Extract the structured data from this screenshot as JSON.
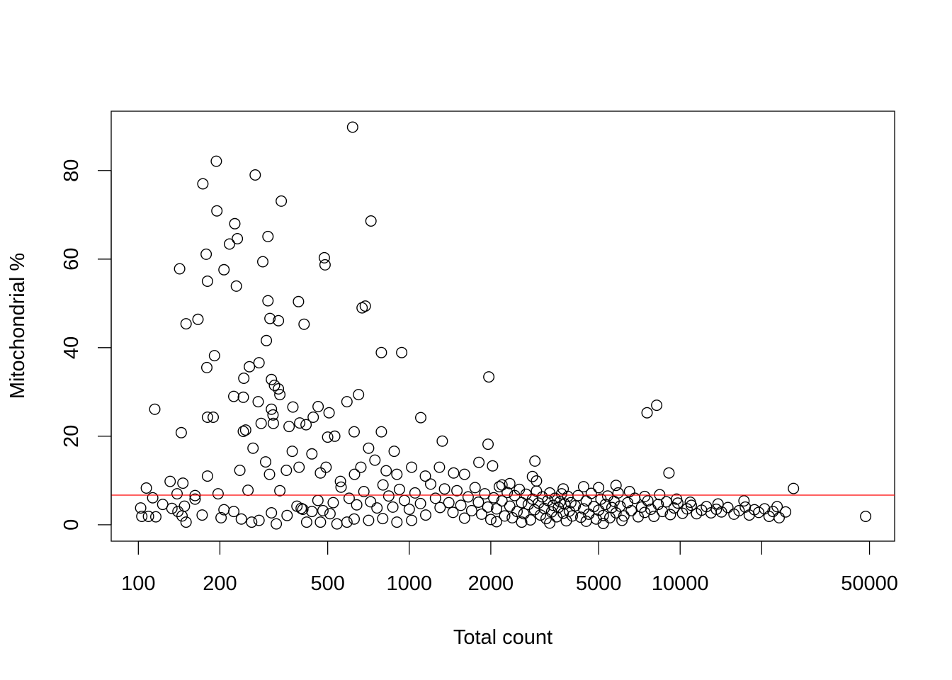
{
  "chart_data": {
    "type": "scatter",
    "title": "",
    "xlabel": "Total count",
    "ylabel": "Mitochondrial %",
    "xscale": "log",
    "xlim": [
      79.4,
      61900
    ],
    "ylim": [
      -3.7,
      93.4
    ],
    "grid": false,
    "legend": "none",
    "x_ticks": [
      {
        "value": 100,
        "label": "100"
      },
      {
        "value": 200,
        "label": "200"
      },
      {
        "value": 500,
        "label": "500"
      },
      {
        "value": 1000,
        "label": "1000"
      },
      {
        "value": 2000,
        "label": "2000"
      },
      {
        "value": 5000,
        "label": "5000"
      },
      {
        "value": 10000,
        "label": "10000"
      },
      {
        "value": 20000,
        "label": ""
      },
      {
        "value": 50000,
        "label": "50000"
      }
    ],
    "y_ticks": [
      {
        "value": 0,
        "label": "0"
      },
      {
        "value": 20,
        "label": "20"
      },
      {
        "value": 40,
        "label": "40"
      },
      {
        "value": 60,
        "label": "60"
      },
      {
        "value": 80,
        "label": "80"
      }
    ],
    "hline": {
      "value": 6.7,
      "color": "#ff0000"
    },
    "point_color": "#000000",
    "points": [
      [
        618,
        89.8
      ],
      [
        194,
        82.1
      ],
      [
        270,
        79.0
      ],
      [
        173,
        77.0
      ],
      [
        337,
        73.1
      ],
      [
        195,
        70.9
      ],
      [
        722,
        68.6
      ],
      [
        227,
        68.0
      ],
      [
        232,
        64.6
      ],
      [
        301,
        65.1
      ],
      [
        217,
        63.4
      ],
      [
        486,
        60.3
      ],
      [
        489,
        58.7
      ],
      [
        178,
        61.1
      ],
      [
        288,
        59.4
      ],
      [
        142,
        57.8
      ],
      [
        207,
        57.6
      ],
      [
        180,
        55.0
      ],
      [
        230,
        53.9
      ],
      [
        301,
        50.6
      ],
      [
        390,
        50.4
      ],
      [
        688,
        49.4
      ],
      [
        670,
        49.0
      ],
      [
        306,
        46.6
      ],
      [
        166,
        46.4
      ],
      [
        329,
        46.1
      ],
      [
        150,
        45.4
      ],
      [
        409,
        45.3
      ],
      [
        297,
        41.6
      ],
      [
        789,
        38.9
      ],
      [
        938,
        38.9
      ],
      [
        191,
        38.2
      ],
      [
        279,
        36.6
      ],
      [
        257,
        35.7
      ],
      [
        179,
        35.5
      ],
      [
        1967,
        33.4
      ],
      [
        245,
        33.1
      ],
      [
        310,
        32.8
      ],
      [
        318,
        31.5
      ],
      [
        329,
        30.7
      ],
      [
        333,
        29.4
      ],
      [
        650,
        29.4
      ],
      [
        225,
        29.0
      ],
      [
        244,
        28.8
      ],
      [
        277,
        27.8
      ],
      [
        589,
        27.8
      ],
      [
        372,
        26.6
      ],
      [
        461,
        26.7
      ],
      [
        8190,
        27.0
      ],
      [
        7550,
        25.3
      ],
      [
        115,
        26.1
      ],
      [
        310,
        26.1
      ],
      [
        506,
        25.3
      ],
      [
        314,
        24.8
      ],
      [
        180,
        24.3
      ],
      [
        189,
        24.3
      ],
      [
        1103,
        24.2
      ],
      [
        442,
        24.3
      ],
      [
        394,
        23.0
      ],
      [
        284,
        22.9
      ],
      [
        315,
        22.9
      ],
      [
        360,
        22.2
      ],
      [
        416,
        22.6
      ],
      [
        144,
        20.8
      ],
      [
        244,
        21.1
      ],
      [
        249,
        21.4
      ],
      [
        626,
        21.0
      ],
      [
        789,
        21.0
      ],
      [
        500,
        19.8
      ],
      [
        531,
        20.0
      ],
      [
        1324,
        18.9
      ],
      [
        1954,
        18.2
      ],
      [
        265,
        17.3
      ],
      [
        370,
        16.6
      ],
      [
        437,
        16.0
      ],
      [
        708,
        17.3
      ],
      [
        880,
        16.6
      ],
      [
        180,
        11.0
      ],
      [
        237,
        12.3
      ],
      [
        9090,
        11.7
      ],
      [
        26200,
        8.2
      ],
      [
        48400,
        1.9
      ],
      [
        131,
        9.8
      ],
      [
        146,
        9.4
      ],
      [
        107,
        8.3
      ],
      [
        2910,
        14.4
      ],
      [
        1808,
        14.1
      ],
      [
        2030,
        13.3
      ],
      [
        113,
        6.1
      ],
      [
        102,
        3.8
      ],
      [
        103,
        1.9
      ],
      [
        109,
        1.9
      ],
      [
        116,
        1.8
      ],
      [
        123,
        4.6
      ],
      [
        133,
        3.7
      ],
      [
        139,
        7.0
      ],
      [
        162,
        6.6
      ],
      [
        162,
        5.8
      ],
      [
        197,
        7.0
      ],
      [
        172,
        2.2
      ],
      [
        150,
        0.6
      ],
      [
        202,
        1.6
      ],
      [
        207,
        3.4
      ],
      [
        225,
        3.0
      ],
      [
        240,
        1.3
      ],
      [
        262,
        0.6
      ],
      [
        279,
        1.0
      ],
      [
        254,
        7.8
      ],
      [
        333,
        7.7
      ],
      [
        310,
        2.7
      ],
      [
        323,
        0.2
      ],
      [
        354,
        2.1
      ],
      [
        399,
        3.7
      ],
      [
        437,
        3.0
      ],
      [
        418,
        0.6
      ],
      [
        470,
        0.6
      ],
      [
        524,
        5.0
      ],
      [
        541,
        0.2
      ],
      [
        589,
        0.6
      ],
      [
        626,
        1.3
      ],
      [
        708,
        1.0
      ],
      [
        798,
        1.4
      ],
      [
        900,
        0.6
      ],
      [
        1020,
        1.0
      ],
      [
        295,
        14.2
      ],
      [
        305,
        11.4
      ],
      [
        352,
        12.3
      ],
      [
        392,
        13.0
      ],
      [
        470,
        11.7
      ],
      [
        493,
        13.0
      ],
      [
        557,
        9.8
      ],
      [
        628,
        11.4
      ],
      [
        663,
        13.0
      ],
      [
        747,
        14.6
      ],
      [
        822,
        12.2
      ],
      [
        900,
        11.4
      ],
      [
        1020,
        13.0
      ],
      [
        1147,
        11.0
      ],
      [
        1293,
        13.0
      ],
      [
        1458,
        11.7
      ],
      [
        1600,
        11.4
      ],
      [
        140,
        3.0
      ],
      [
        145,
        2.0
      ],
      [
        148,
        4.2
      ],
      [
        385,
        4.2
      ],
      [
        405,
        3.5
      ],
      [
        460,
        5.5
      ],
      [
        480,
        3.2
      ],
      [
        510,
        2.5
      ],
      [
        560,
        8.5
      ],
      [
        600,
        6.0
      ],
      [
        640,
        4.5
      ],
      [
        680,
        7.5
      ],
      [
        720,
        5.2
      ],
      [
        760,
        3.8
      ],
      [
        800,
        9.0
      ],
      [
        840,
        6.5
      ],
      [
        870,
        4.0
      ],
      [
        920,
        8.0
      ],
      [
        960,
        5.5
      ],
      [
        1000,
        3.5
      ],
      [
        1050,
        7.2
      ],
      [
        1100,
        4.8
      ],
      [
        1150,
        2.2
      ],
      [
        1200,
        9.2
      ],
      [
        1250,
        6.0
      ],
      [
        1300,
        3.9
      ],
      [
        1350,
        8.1
      ],
      [
        1400,
        5.0
      ],
      [
        1450,
        2.8
      ],
      [
        1500,
        7.7
      ],
      [
        1550,
        4.4
      ],
      [
        1600,
        1.5
      ],
      [
        1650,
        6.3
      ],
      [
        1700,
        3.2
      ],
      [
        1750,
        8.4
      ],
      [
        1800,
        5.1
      ],
      [
        1850,
        2.4
      ],
      [
        1900,
        7.0
      ],
      [
        1950,
        4.0
      ],
      [
        2000,
        1.2
      ],
      [
        2050,
        6.1
      ],
      [
        2100,
        3.6
      ],
      [
        2150,
        8.6
      ],
      [
        2200,
        5.4
      ],
      [
        2250,
        2.0
      ],
      [
        2300,
        7.3
      ],
      [
        2350,
        4.2
      ],
      [
        2400,
        1.6
      ],
      [
        2450,
        6.6
      ],
      [
        2500,
        3.0
      ],
      [
        2550,
        8.0
      ],
      [
        2600,
        5.0
      ],
      [
        2650,
        2.5
      ],
      [
        2700,
        6.9
      ],
      [
        2750,
        4.6
      ],
      [
        2800,
        1.1
      ],
      [
        2850,
        5.8
      ],
      [
        2900,
        3.4
      ],
      [
        2950,
        7.6
      ],
      [
        3000,
        4.9
      ],
      [
        3050,
        2.2
      ],
      [
        3100,
        6.3
      ],
      [
        3150,
        3.7
      ],
      [
        3200,
        1.4
      ],
      [
        3250,
        5.5
      ],
      [
        3300,
        7.2
      ],
      [
        3350,
        2.9
      ],
      [
        3400,
        4.4
      ],
      [
        3450,
        6.0
      ],
      [
        3500,
        1.8
      ],
      [
        3550,
        3.9
      ],
      [
        3600,
        5.2
      ],
      [
        3650,
        7.0
      ],
      [
        3700,
        2.6
      ],
      [
        3750,
        4.7
      ],
      [
        3800,
        0.9
      ],
      [
        3850,
        6.4
      ],
      [
        3900,
        3.1
      ],
      [
        3950,
        5.0
      ],
      [
        4000,
        2.0
      ],
      [
        4100,
        4.3
      ],
      [
        4200,
        6.6
      ],
      [
        4300,
        1.7
      ],
      [
        4400,
        3.6
      ],
      [
        4500,
        5.4
      ],
      [
        4600,
        2.4
      ],
      [
        4700,
        7.1
      ],
      [
        4800,
        4.1
      ],
      [
        4900,
        1.3
      ],
      [
        5000,
        3.3
      ],
      [
        5100,
        5.8
      ],
      [
        5200,
        2.1
      ],
      [
        5300,
        4.6
      ],
      [
        5400,
        6.5
      ],
      [
        5500,
        1.6
      ],
      [
        5600,
        3.9
      ],
      [
        5700,
        5.3
      ],
      [
        5800,
        2.7
      ],
      [
        5900,
        7.2
      ],
      [
        6000,
        4.2
      ],
      [
        6200,
        2.0
      ],
      [
        6400,
        5.0
      ],
      [
        6600,
        3.2
      ],
      [
        6800,
        6.0
      ],
      [
        7000,
        1.8
      ],
      [
        7200,
        4.0
      ],
      [
        7400,
        2.8
      ],
      [
        7600,
        5.4
      ],
      [
        7800,
        3.5
      ],
      [
        8000,
        1.9
      ],
      [
        8300,
        4.6
      ],
      [
        8600,
        3.0
      ],
      [
        8900,
        5.2
      ],
      [
        9200,
        2.3
      ],
      [
        9500,
        3.8
      ],
      [
        9800,
        4.9
      ],
      [
        10200,
        2.6
      ],
      [
        10600,
        3.6
      ],
      [
        11000,
        4.4
      ],
      [
        11500,
        2.5
      ],
      [
        12000,
        3.3
      ],
      [
        12500,
        4.1
      ],
      [
        13000,
        2.7
      ],
      [
        13600,
        3.5
      ],
      [
        14200,
        2.9
      ],
      [
        15000,
        3.9
      ],
      [
        15800,
        2.4
      ],
      [
        16500,
        3.2
      ],
      [
        17400,
        4.0
      ],
      [
        18000,
        2.2
      ],
      [
        18800,
        3.4
      ],
      [
        19500,
        2.8
      ],
      [
        20500,
        3.6
      ],
      [
        21300,
        1.9
      ],
      [
        22000,
        3.0
      ],
      [
        22800,
        4.1
      ],
      [
        23200,
        1.6
      ],
      [
        24500,
        2.9
      ],
      [
        2100,
        0.7
      ],
      [
        2600,
        0.6
      ],
      [
        3300,
        0.4
      ],
      [
        4500,
        0.8
      ],
      [
        5200,
        0.3
      ],
      [
        6100,
        1.0
      ],
      [
        2200,
        9.0
      ],
      [
        2350,
        9.3
      ],
      [
        2850,
        10.9
      ],
      [
        2950,
        9.9
      ],
      [
        3700,
        8.1
      ],
      [
        4400,
        8.6
      ],
      [
        5000,
        8.4
      ],
      [
        5800,
        8.9
      ],
      [
        6500,
        7.5
      ],
      [
        7400,
        6.4
      ],
      [
        8400,
        6.8
      ],
      [
        9700,
        5.8
      ],
      [
        10900,
        5.1
      ],
      [
        13800,
        4.7
      ],
      [
        17200,
        5.4
      ]
    ]
  }
}
